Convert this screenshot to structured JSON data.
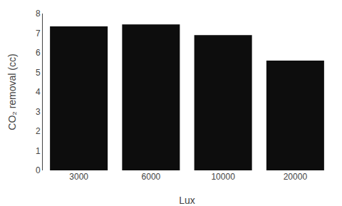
{
  "chart_data": {
    "type": "bar",
    "categories": [
      "3000",
      "6000",
      "10000",
      "20000"
    ],
    "values": [
      7.35,
      7.45,
      6.9,
      5.6
    ],
    "color": "#0d0d0d",
    "xlabel": "Lux",
    "ylabel": "CO₂ removal (cc)",
    "ylim": [
      0,
      8
    ],
    "yticks": [
      0,
      1,
      2,
      3,
      4,
      5,
      6,
      7,
      8
    ],
    "grid": false
  }
}
